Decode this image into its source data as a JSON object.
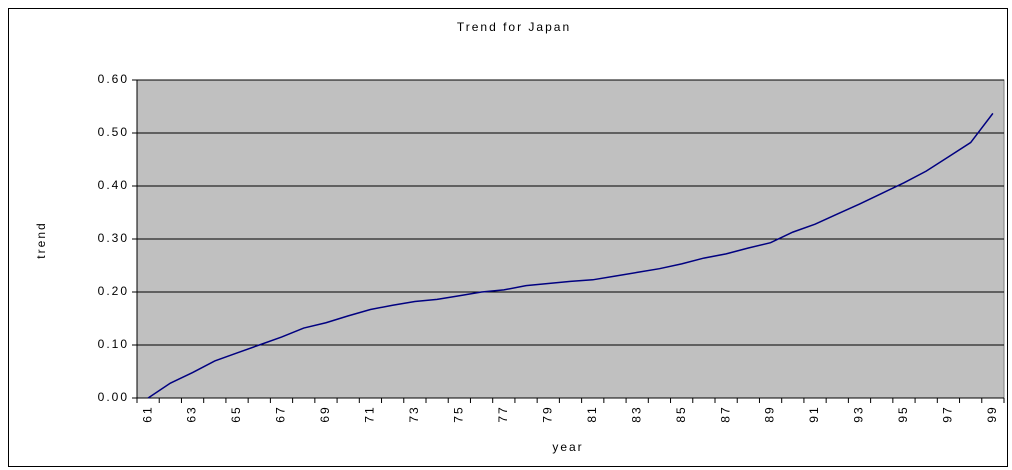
{
  "chart_data": {
    "type": "line",
    "title": "Trend for Japan",
    "x_label": "year",
    "y_label": "trend",
    "categories": [
      "61",
      null,
      "63",
      null,
      "65",
      null,
      "67",
      null,
      "69",
      null,
      "71",
      null,
      "73",
      null,
      "75",
      null,
      "77",
      null,
      "79",
      null,
      "81",
      null,
      "83",
      null,
      "85",
      null,
      "87",
      null,
      "89",
      null,
      "91",
      null,
      "93",
      null,
      "95",
      null,
      "97",
      null,
      "99"
    ],
    "series": [
      {
        "name": "trend",
        "color": "#000080",
        "values": [
          0.0,
          0.028,
          0.048,
          0.07,
          0.085,
          0.1,
          0.115,
          0.132,
          0.142,
          0.155,
          0.167,
          0.175,
          0.182,
          0.186,
          0.193,
          0.2,
          0.204,
          0.212,
          0.216,
          0.22,
          0.223,
          0.23,
          0.237,
          0.244,
          0.253,
          0.264,
          0.272,
          0.283,
          0.293,
          0.313,
          0.328,
          0.347,
          0.366,
          0.386,
          0.406,
          0.428,
          0.455,
          0.482,
          0.537
        ]
      }
    ],
    "ylim": [
      0,
      0.6
    ],
    "yticks": [
      {
        "value": 0,
        "label": "0.00"
      },
      {
        "value": 0.1,
        "label": "0.10"
      },
      {
        "value": 0.2,
        "label": "0.20"
      },
      {
        "value": 0.3,
        "label": "0.30"
      },
      {
        "value": 0.4,
        "label": "0.40"
      },
      {
        "value": 0.5,
        "label": "0.50"
      },
      {
        "value": 0.6,
        "label": "0.60"
      }
    ],
    "grid": true,
    "plot_background": "#c0c0c0"
  }
}
